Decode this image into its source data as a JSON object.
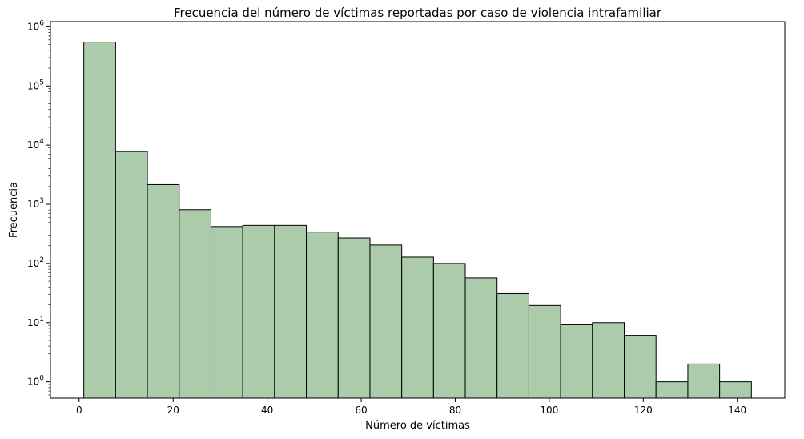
{
  "chart_data": {
    "type": "bar",
    "title": "Frecuencia del número de víctimas reportadas por caso de violencia intrafamiliar",
    "xlabel": "Número de víctimas",
    "ylabel": "Frecuencia",
    "yscale": "log",
    "xlim": [
      -6.1,
      150.1
    ],
    "ylim": [
      0.53,
      1220000
    ],
    "grid": false,
    "legend": "none",
    "bar_color": "#abcbab",
    "edge_color": "#000000",
    "bin_edges": [
      1,
      7.76,
      14.52,
      21.29,
      28.05,
      34.81,
      41.57,
      48.33,
      55.1,
      61.86,
      68.62,
      75.38,
      82.14,
      88.9,
      95.67,
      102.43,
      109.19,
      115.95,
      122.71,
      129.48,
      136.24,
      143
    ],
    "values": [
      550000,
      7800,
      2150,
      810,
      420,
      440,
      440,
      340,
      270,
      205,
      128,
      100,
      57,
      31,
      19.5,
      9.2,
      10,
      6.1,
      1,
      2,
      1
    ],
    "x_ticks": [
      0,
      20,
      40,
      60,
      80,
      100,
      120,
      140
    ],
    "y_ticks": [
      {
        "value": 1,
        "base": "10",
        "exp": "0"
      },
      {
        "value": 10,
        "base": "10",
        "exp": "1"
      },
      {
        "value": 100,
        "base": "10",
        "exp": "2"
      },
      {
        "value": 1000,
        "base": "10",
        "exp": "3"
      },
      {
        "value": 10000,
        "base": "10",
        "exp": "4"
      },
      {
        "value": 100000,
        "base": "10",
        "exp": "5"
      },
      {
        "value": 1000000,
        "base": "10",
        "exp": "6"
      }
    ]
  }
}
